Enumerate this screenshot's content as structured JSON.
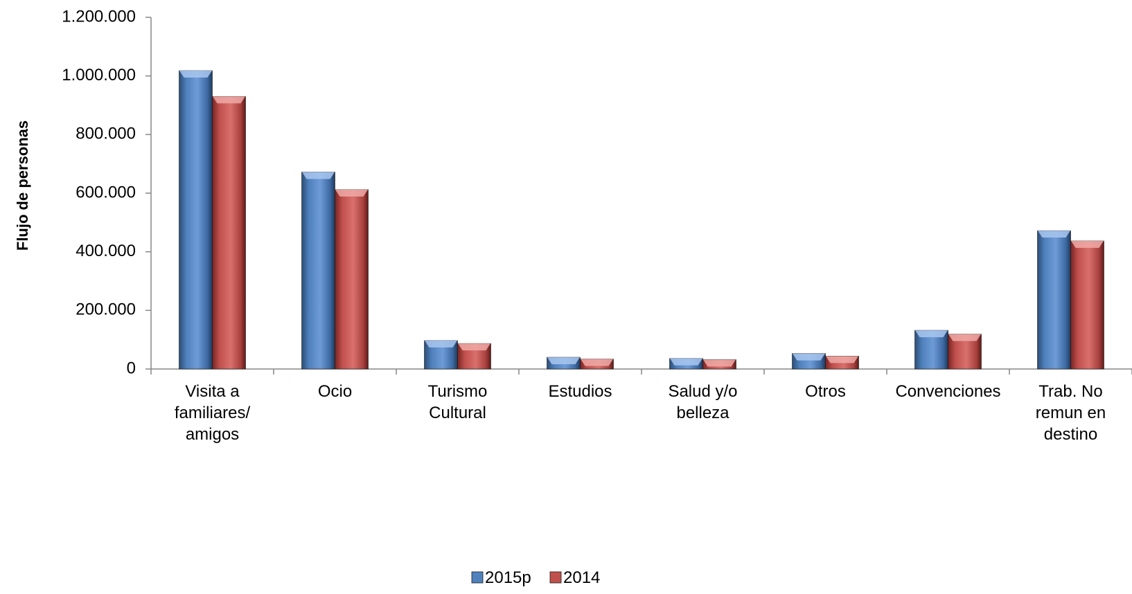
{
  "chart_data": {
    "type": "bar",
    "title": "",
    "xlabel": "",
    "ylabel": "Flujo de personas",
    "ylim": [
      0,
      1200000
    ],
    "yticks": [
      0,
      200000,
      400000,
      600000,
      800000,
      1000000,
      1200000
    ],
    "ytick_labels": [
      "0",
      "200.000",
      "400.000",
      "600.000",
      "800.000",
      "1.000.000",
      "1.200.000"
    ],
    "grid": false,
    "legend_position": "bottom",
    "categories": [
      [
        "Visita a",
        "familiares/",
        "amigos"
      ],
      [
        "Ocio"
      ],
      [
        "Turismo",
        "Cultural"
      ],
      [
        "Estudios"
      ],
      [
        "Salud y/o",
        "belleza"
      ],
      [
        "Otros"
      ],
      [
        "Convenciones"
      ],
      [
        "Trab. No",
        "remun en",
        "destino"
      ]
    ],
    "series": [
      {
        "name": "2015p",
        "color": "#4f81bd",
        "values": [
          1018000,
          672000,
          97000,
          40000,
          36000,
          53000,
          132000,
          472000
        ]
      },
      {
        "name": "2014",
        "color": "#c0504d",
        "values": [
          930000,
          612000,
          87000,
          34000,
          32000,
          44000,
          119000,
          437000
        ]
      }
    ]
  }
}
